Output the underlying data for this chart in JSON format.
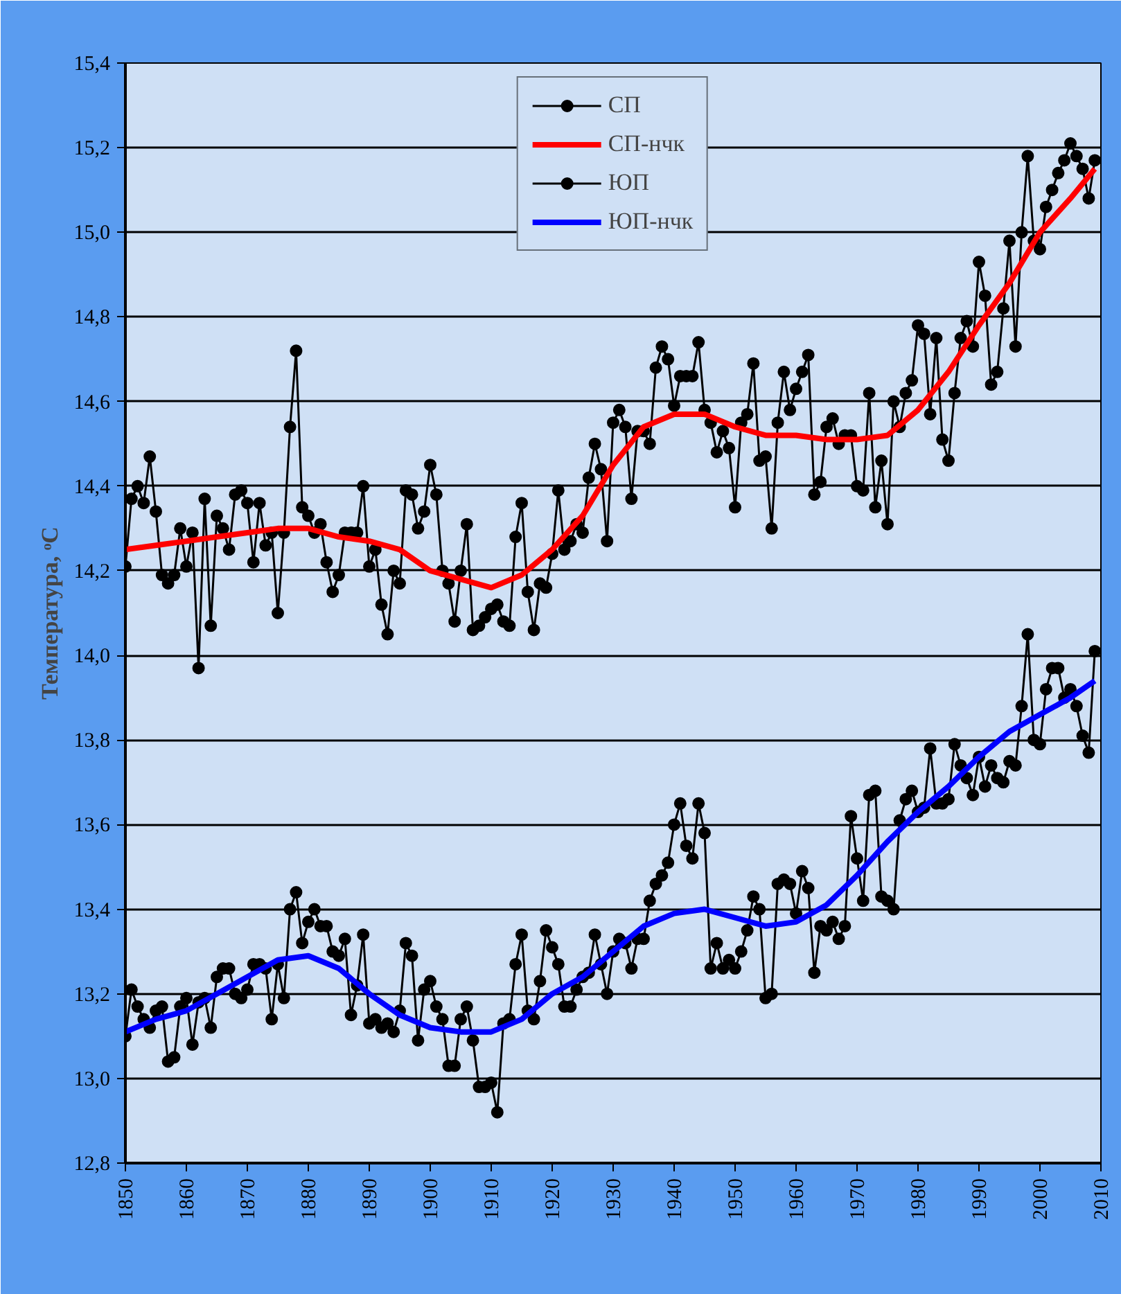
{
  "chart_data": {
    "type": "line",
    "ylabel": "Температура, ᵒC",
    "xlim": [
      1850,
      2010
    ],
    "xticks": [
      1850,
      1860,
      1870,
      1880,
      1890,
      1900,
      1910,
      1920,
      1930,
      1940,
      1950,
      1960,
      1970,
      1980,
      1990,
      2000,
      2010
    ],
    "ylim": [
      12.8,
      15.4
    ],
    "yticks": [
      {
        "value": 12.8,
        "label": "12,8"
      },
      {
        "value": 13.0,
        "label": "13,0"
      },
      {
        "value": 13.2,
        "label": "13,2"
      },
      {
        "value": 13.4,
        "label": "13,4"
      },
      {
        "value": 13.6,
        "label": "13,6"
      },
      {
        "value": 13.8,
        "label": "13,8"
      },
      {
        "value": 14.0,
        "label": "14,0"
      },
      {
        "value": 14.2,
        "label": "14,2"
      },
      {
        "value": 14.4,
        "label": "14,4"
      },
      {
        "value": 14.6,
        "label": "14,6"
      },
      {
        "value": 14.8,
        "label": "14,8"
      },
      {
        "value": 15.0,
        "label": "15,0"
      },
      {
        "value": 15.2,
        "label": "15,2"
      },
      {
        "value": 15.4,
        "label": "15,4"
      }
    ],
    "grid": "y",
    "legend": "top",
    "line_style": "solid",
    "series": [
      {
        "name": "СП",
        "color": "#000000",
        "marker": "circle",
        "x": [
          1850,
          1851,
          1852,
          1853,
          1854,
          1855,
          1856,
          1857,
          1858,
          1859,
          1860,
          1861,
          1862,
          1863,
          1864,
          1865,
          1866,
          1867,
          1868,
          1869,
          1870,
          1871,
          1872,
          1873,
          1874,
          1875,
          1876,
          1877,
          1878,
          1879,
          1880,
          1881,
          1882,
          1883,
          1884,
          1885,
          1886,
          1887,
          1888,
          1889,
          1890,
          1891,
          1892,
          1893,
          1894,
          1895,
          1896,
          1897,
          1898,
          1899,
          1900,
          1901,
          1902,
          1903,
          1904,
          1905,
          1906,
          1907,
          1908,
          1909,
          1910,
          1911,
          1912,
          1913,
          1914,
          1915,
          1916,
          1917,
          1918,
          1919,
          1920,
          1921,
          1922,
          1923,
          1924,
          1925,
          1926,
          1927,
          1928,
          1929,
          1930,
          1931,
          1932,
          1933,
          1934,
          1935,
          1936,
          1937,
          1938,
          1939,
          1940,
          1941,
          1942,
          1943,
          1944,
          1945,
          1946,
          1947,
          1948,
          1949,
          1950,
          1951,
          1952,
          1953,
          1954,
          1955,
          1956,
          1957,
          1958,
          1959,
          1960,
          1961,
          1962,
          1963,
          1964,
          1965,
          1966,
          1967,
          1968,
          1969,
          1970,
          1971,
          1972,
          1973,
          1974,
          1975,
          1976,
          1977,
          1978,
          1979,
          1980,
          1981,
          1982,
          1983,
          1984,
          1985,
          1986,
          1987,
          1988,
          1989,
          1990,
          1991,
          1992,
          1993,
          1994,
          1995,
          1996,
          1997,
          1998,
          1999,
          2000,
          2001,
          2002,
          2003,
          2004,
          2005,
          2006,
          2007,
          2008,
          2009
        ],
        "values": [
          14.21,
          14.37,
          14.4,
          14.36,
          14.47,
          14.34,
          14.19,
          14.17,
          14.19,
          14.3,
          14.21,
          14.29,
          13.97,
          14.37,
          14.07,
          14.33,
          14.3,
          14.25,
          14.38,
          14.39,
          14.36,
          14.22,
          14.36,
          14.26,
          14.29,
          14.1,
          14.29,
          14.54,
          14.72,
          14.35,
          14.33,
          14.29,
          14.31,
          14.22,
          14.15,
          14.19,
          14.29,
          14.29,
          14.29,
          14.4,
          14.21,
          14.25,
          14.12,
          14.05,
          14.2,
          14.17,
          14.39,
          14.38,
          14.3,
          14.34,
          14.45,
          14.38,
          14.2,
          14.17,
          14.08,
          14.2,
          14.31,
          14.06,
          14.07,
          14.09,
          14.11,
          14.12,
          14.08,
          14.07,
          14.28,
          14.36,
          14.15,
          14.06,
          14.17,
          14.16,
          14.24,
          14.39,
          14.25,
          14.27,
          14.31,
          14.29,
          14.42,
          14.5,
          14.44,
          14.27,
          14.55,
          14.58,
          14.54,
          14.37,
          14.53,
          14.53,
          14.5,
          14.68,
          14.73,
          14.7,
          14.59,
          14.66,
          14.66,
          14.66,
          14.74,
          14.58,
          14.55,
          14.48,
          14.53,
          14.49,
          14.35,
          14.55,
          14.57,
          14.69,
          14.46,
          14.47,
          14.3,
          14.55,
          14.67,
          14.58,
          14.63,
          14.67,
          14.71,
          14.38,
          14.41,
          14.54,
          14.56,
          14.5,
          14.52,
          14.52,
          14.4,
          14.39,
          14.62,
          14.35,
          14.46,
          14.31,
          14.6,
          14.54,
          14.62,
          14.65,
          14.78,
          14.76,
          14.57,
          14.75,
          14.51,
          14.46,
          14.62,
          14.75,
          14.79,
          14.73,
          14.93,
          14.85,
          14.64,
          14.67,
          14.82,
          14.98,
          14.73,
          15.0,
          15.18,
          14.98,
          14.96,
          15.06,
          15.1,
          15.14,
          15.17,
          15.21,
          15.18,
          15.15,
          15.08,
          15.17
        ]
      },
      {
        "name": "СП-нчк",
        "color": "#ff0000",
        "x": [
          1850,
          1855,
          1860,
          1865,
          1870,
          1875,
          1880,
          1885,
          1890,
          1895,
          1900,
          1905,
          1910,
          1915,
          1920,
          1925,
          1930,
          1935,
          1940,
          1945,
          1950,
          1955,
          1960,
          1965,
          1970,
          1975,
          1980,
          1985,
          1990,
          1995,
          2000,
          2005,
          2009
        ],
        "values": [
          14.25,
          14.26,
          14.27,
          14.28,
          14.29,
          14.3,
          14.3,
          14.28,
          14.27,
          14.25,
          14.2,
          14.18,
          14.16,
          14.19,
          14.25,
          14.33,
          14.45,
          14.54,
          14.57,
          14.57,
          14.54,
          14.52,
          14.52,
          14.51,
          14.51,
          14.52,
          14.58,
          14.67,
          14.78,
          14.88,
          15.0,
          15.08,
          15.15
        ]
      },
      {
        "name": "ЮП",
        "color": "#000000",
        "marker": "circle",
        "x": [
          1850,
          1851,
          1852,
          1853,
          1854,
          1855,
          1856,
          1857,
          1858,
          1859,
          1860,
          1861,
          1862,
          1863,
          1864,
          1865,
          1866,
          1867,
          1868,
          1869,
          1870,
          1871,
          1872,
          1873,
          1874,
          1875,
          1876,
          1877,
          1878,
          1879,
          1880,
          1881,
          1882,
          1883,
          1884,
          1885,
          1886,
          1887,
          1888,
          1889,
          1890,
          1891,
          1892,
          1893,
          1894,
          1895,
          1896,
          1897,
          1898,
          1899,
          1900,
          1901,
          1902,
          1903,
          1904,
          1905,
          1906,
          1907,
          1908,
          1909,
          1910,
          1911,
          1912,
          1913,
          1914,
          1915,
          1916,
          1917,
          1918,
          1919,
          1920,
          1921,
          1922,
          1923,
          1924,
          1925,
          1926,
          1927,
          1928,
          1929,
          1930,
          1931,
          1932,
          1933,
          1934,
          1935,
          1936,
          1937,
          1938,
          1939,
          1940,
          1941,
          1942,
          1943,
          1944,
          1945,
          1946,
          1947,
          1948,
          1949,
          1950,
          1951,
          1952,
          1953,
          1954,
          1955,
          1956,
          1957,
          1958,
          1959,
          1960,
          1961,
          1962,
          1963,
          1964,
          1965,
          1966,
          1967,
          1968,
          1969,
          1970,
          1971,
          1972,
          1973,
          1974,
          1975,
          1976,
          1977,
          1978,
          1979,
          1980,
          1981,
          1982,
          1983,
          1984,
          1985,
          1986,
          1987,
          1988,
          1989,
          1990,
          1991,
          1992,
          1993,
          1994,
          1995,
          1996,
          1997,
          1998,
          1999,
          2000,
          2001,
          2002,
          2003,
          2004,
          2005,
          2006,
          2007,
          2008,
          2009
        ],
        "values": [
          13.1,
          13.21,
          13.17,
          13.14,
          13.12,
          13.16,
          13.17,
          13.04,
          13.05,
          13.17,
          13.19,
          13.08,
          13.18,
          13.19,
          13.12,
          13.24,
          13.26,
          13.26,
          13.2,
          13.19,
          13.21,
          13.27,
          13.27,
          13.26,
          13.14,
          13.27,
          13.19,
          13.4,
          13.44,
          13.32,
          13.37,
          13.4,
          13.36,
          13.36,
          13.3,
          13.29,
          13.33,
          13.15,
          13.22,
          13.34,
          13.13,
          13.14,
          13.12,
          13.13,
          13.11,
          13.16,
          13.32,
          13.29,
          13.09,
          13.21,
          13.23,
          13.17,
          13.14,
          13.03,
          13.03,
          13.14,
          13.17,
          13.09,
          12.98,
          12.98,
          12.99,
          12.92,
          13.13,
          13.14,
          13.27,
          13.34,
          13.16,
          13.14,
          13.23,
          13.35,
          13.31,
          13.27,
          13.17,
          13.17,
          13.21,
          13.24,
          13.25,
          13.34,
          13.27,
          13.2,
          13.3,
          13.33,
          13.32,
          13.26,
          13.33,
          13.33,
          13.42,
          13.46,
          13.48,
          13.51,
          13.6,
          13.65,
          13.55,
          13.52,
          13.65,
          13.58,
          13.26,
          13.32,
          13.26,
          13.28,
          13.26,
          13.3,
          13.35,
          13.43,
          13.4,
          13.19,
          13.2,
          13.46,
          13.47,
          13.46,
          13.39,
          13.49,
          13.45,
          13.25,
          13.36,
          13.35,
          13.37,
          13.33,
          13.36,
          13.62,
          13.52,
          13.42,
          13.67,
          13.68,
          13.43,
          13.42,
          13.4,
          13.61,
          13.66,
          13.68,
          13.63,
          13.64,
          13.78,
          13.65,
          13.65,
          13.66,
          13.79,
          13.74,
          13.71,
          13.67,
          13.76,
          13.69,
          13.74,
          13.71,
          13.7,
          13.75,
          13.74,
          13.88,
          14.05,
          13.8,
          13.79,
          13.92,
          13.97,
          13.97,
          13.9,
          13.92,
          13.88,
          13.81,
          13.77,
          14.01
        ]
      },
      {
        "name": "ЮП-нчк",
        "color": "#0000ff",
        "x": [
          1850,
          1855,
          1860,
          1865,
          1870,
          1875,
          1880,
          1885,
          1890,
          1895,
          1900,
          1905,
          1910,
          1915,
          1920,
          1925,
          1930,
          1935,
          1940,
          1945,
          1950,
          1955,
          1960,
          1965,
          1970,
          1975,
          1980,
          1985,
          1990,
          1995,
          2000,
          2005,
          2009
        ],
        "values": [
          13.11,
          13.14,
          13.16,
          13.2,
          13.24,
          13.28,
          13.29,
          13.26,
          13.2,
          13.15,
          13.12,
          13.11,
          13.11,
          13.14,
          13.2,
          13.24,
          13.3,
          13.36,
          13.39,
          13.4,
          13.38,
          13.36,
          13.37,
          13.41,
          13.48,
          13.56,
          13.63,
          13.69,
          13.76,
          13.82,
          13.86,
          13.9,
          13.94
        ]
      }
    ]
  }
}
